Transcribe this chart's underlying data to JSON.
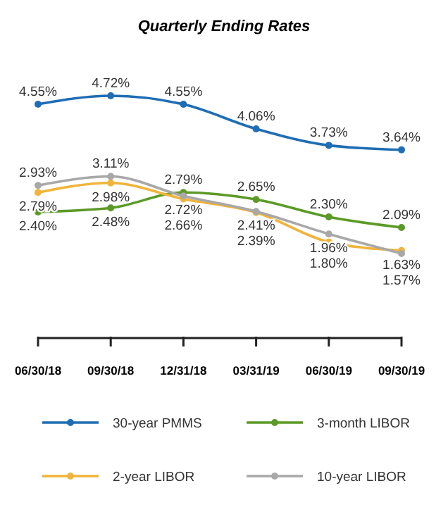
{
  "chart_data": {
    "type": "line",
    "title": "Quarterly Ending Rates",
    "categories": [
      "06/30/18",
      "09/30/18",
      "12/31/18",
      "03/31/19",
      "06/30/19",
      "09/30/19"
    ],
    "series": [
      {
        "name": "30-year PMMS",
        "color": "#1f6db4",
        "values": [
          4.55,
          4.72,
          4.55,
          4.06,
          3.73,
          3.64
        ],
        "value_labels": [
          "4.55%",
          "4.72%",
          "4.55%",
          "4.06%",
          "3.73%",
          "3.64%"
        ]
      },
      {
        "name": "3-month LIBOR",
        "color": "#5b9a27",
        "values": [
          2.4,
          2.48,
          2.79,
          2.65,
          2.3,
          2.09
        ],
        "value_labels": [
          "2.40%",
          "2.48%",
          "2.79%",
          "2.65%",
          "2.30%",
          "2.09%"
        ]
      },
      {
        "name": "2-year LIBOR",
        "color": "#f0b43a",
        "values": [
          2.79,
          2.98,
          2.66,
          2.39,
          1.8,
          1.63
        ],
        "value_labels": [
          "2.79%",
          "2.98%",
          "2.66%",
          "2.39%",
          "1.80%",
          "1.63%"
        ]
      },
      {
        "name": "10-year LIBOR",
        "color": "#a8a8a8",
        "values": [
          2.93,
          3.11,
          2.72,
          2.41,
          1.96,
          1.57
        ],
        "value_labels": [
          "2.93%",
          "3.11%",
          "2.72%",
          "2.41%",
          "1.96%",
          "1.57%"
        ]
      }
    ],
    "marker": "circle",
    "legend": "bottom",
    "grid": false
  }
}
